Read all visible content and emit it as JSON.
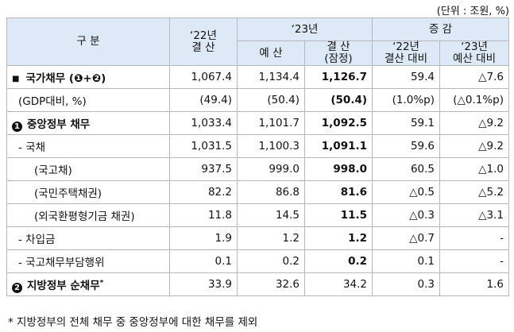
{
  "unit_note": "(단위 : 조원, %)",
  "header": {
    "category": "구    분",
    "y22": "‘22년\n결 산",
    "y23_group": "‘23년",
    "budget": "예 산",
    "settle_a": "결 산",
    "settle_b": "(잠정)",
    "change_group": "증 감",
    "chg22_a": "‘22년",
    "chg22_b": "결산 대비",
    "chg23_a": "‘23년",
    "chg23_b": "예산 대비"
  },
  "rows": [
    {
      "label": "국가채무 (❶+❷)",
      "v22": "1,067.4",
      "budget": "1,134.4",
      "settle": "1,126.7",
      "c22": "59.4",
      "c23": "△7.6"
    },
    {
      "label": "(GDP대비, %)",
      "v22": "(49.4)",
      "budget": "(50.4)",
      "settle": "(50.4)",
      "c22": "(1.0%p)",
      "c23": "(△0.1%p)"
    },
    {
      "label": "중앙정부 채무",
      "v22": "1,033.4",
      "budget": "1,101.7",
      "settle": "1,092.5",
      "c22": "59.1",
      "c23": "△9.2"
    },
    {
      "label": "- 국채",
      "v22": "1,031.5",
      "budget": "1,100.3",
      "settle": "1,091.1",
      "c22": "59.6",
      "c23": "△9.2"
    },
    {
      "label": "(국고채)",
      "v22": "937.5",
      "budget": "999.0",
      "settle": "998.0",
      "c22": "60.5",
      "c23": "△1.0"
    },
    {
      "label": "(국민주택채권)",
      "v22": "82.2",
      "budget": "86.8",
      "settle": "81.6",
      "c22": "△0.5",
      "c23": "△5.2"
    },
    {
      "label": "(외국환평형기금 채권)",
      "v22": "11.8",
      "budget": "14.5",
      "settle": "11.5",
      "c22": "△0.3",
      "c23": "△3.1"
    },
    {
      "label": "- 차입금",
      "v22": "1.9",
      "budget": "1.2",
      "settle": "1.2",
      "c22": "△0.7",
      "c23": "-"
    },
    {
      "label": "- 국고채무부담행위",
      "v22": "0.1",
      "budget": "0.2",
      "settle": "0.2",
      "c22": "0.1",
      "c23": "-"
    },
    {
      "label": "지방정부 순채무",
      "sup": "*",
      "v22": "33.9",
      "budget": "32.6",
      "settle": "34.2",
      "c22": "0.3",
      "c23": "1.6"
    }
  ],
  "markers": {
    "row0": "■",
    "row2": "1",
    "row9": "2"
  },
  "footnote": "* 지방정부의 전체 채무 중 중앙정부에 대한 채무를 제외"
}
